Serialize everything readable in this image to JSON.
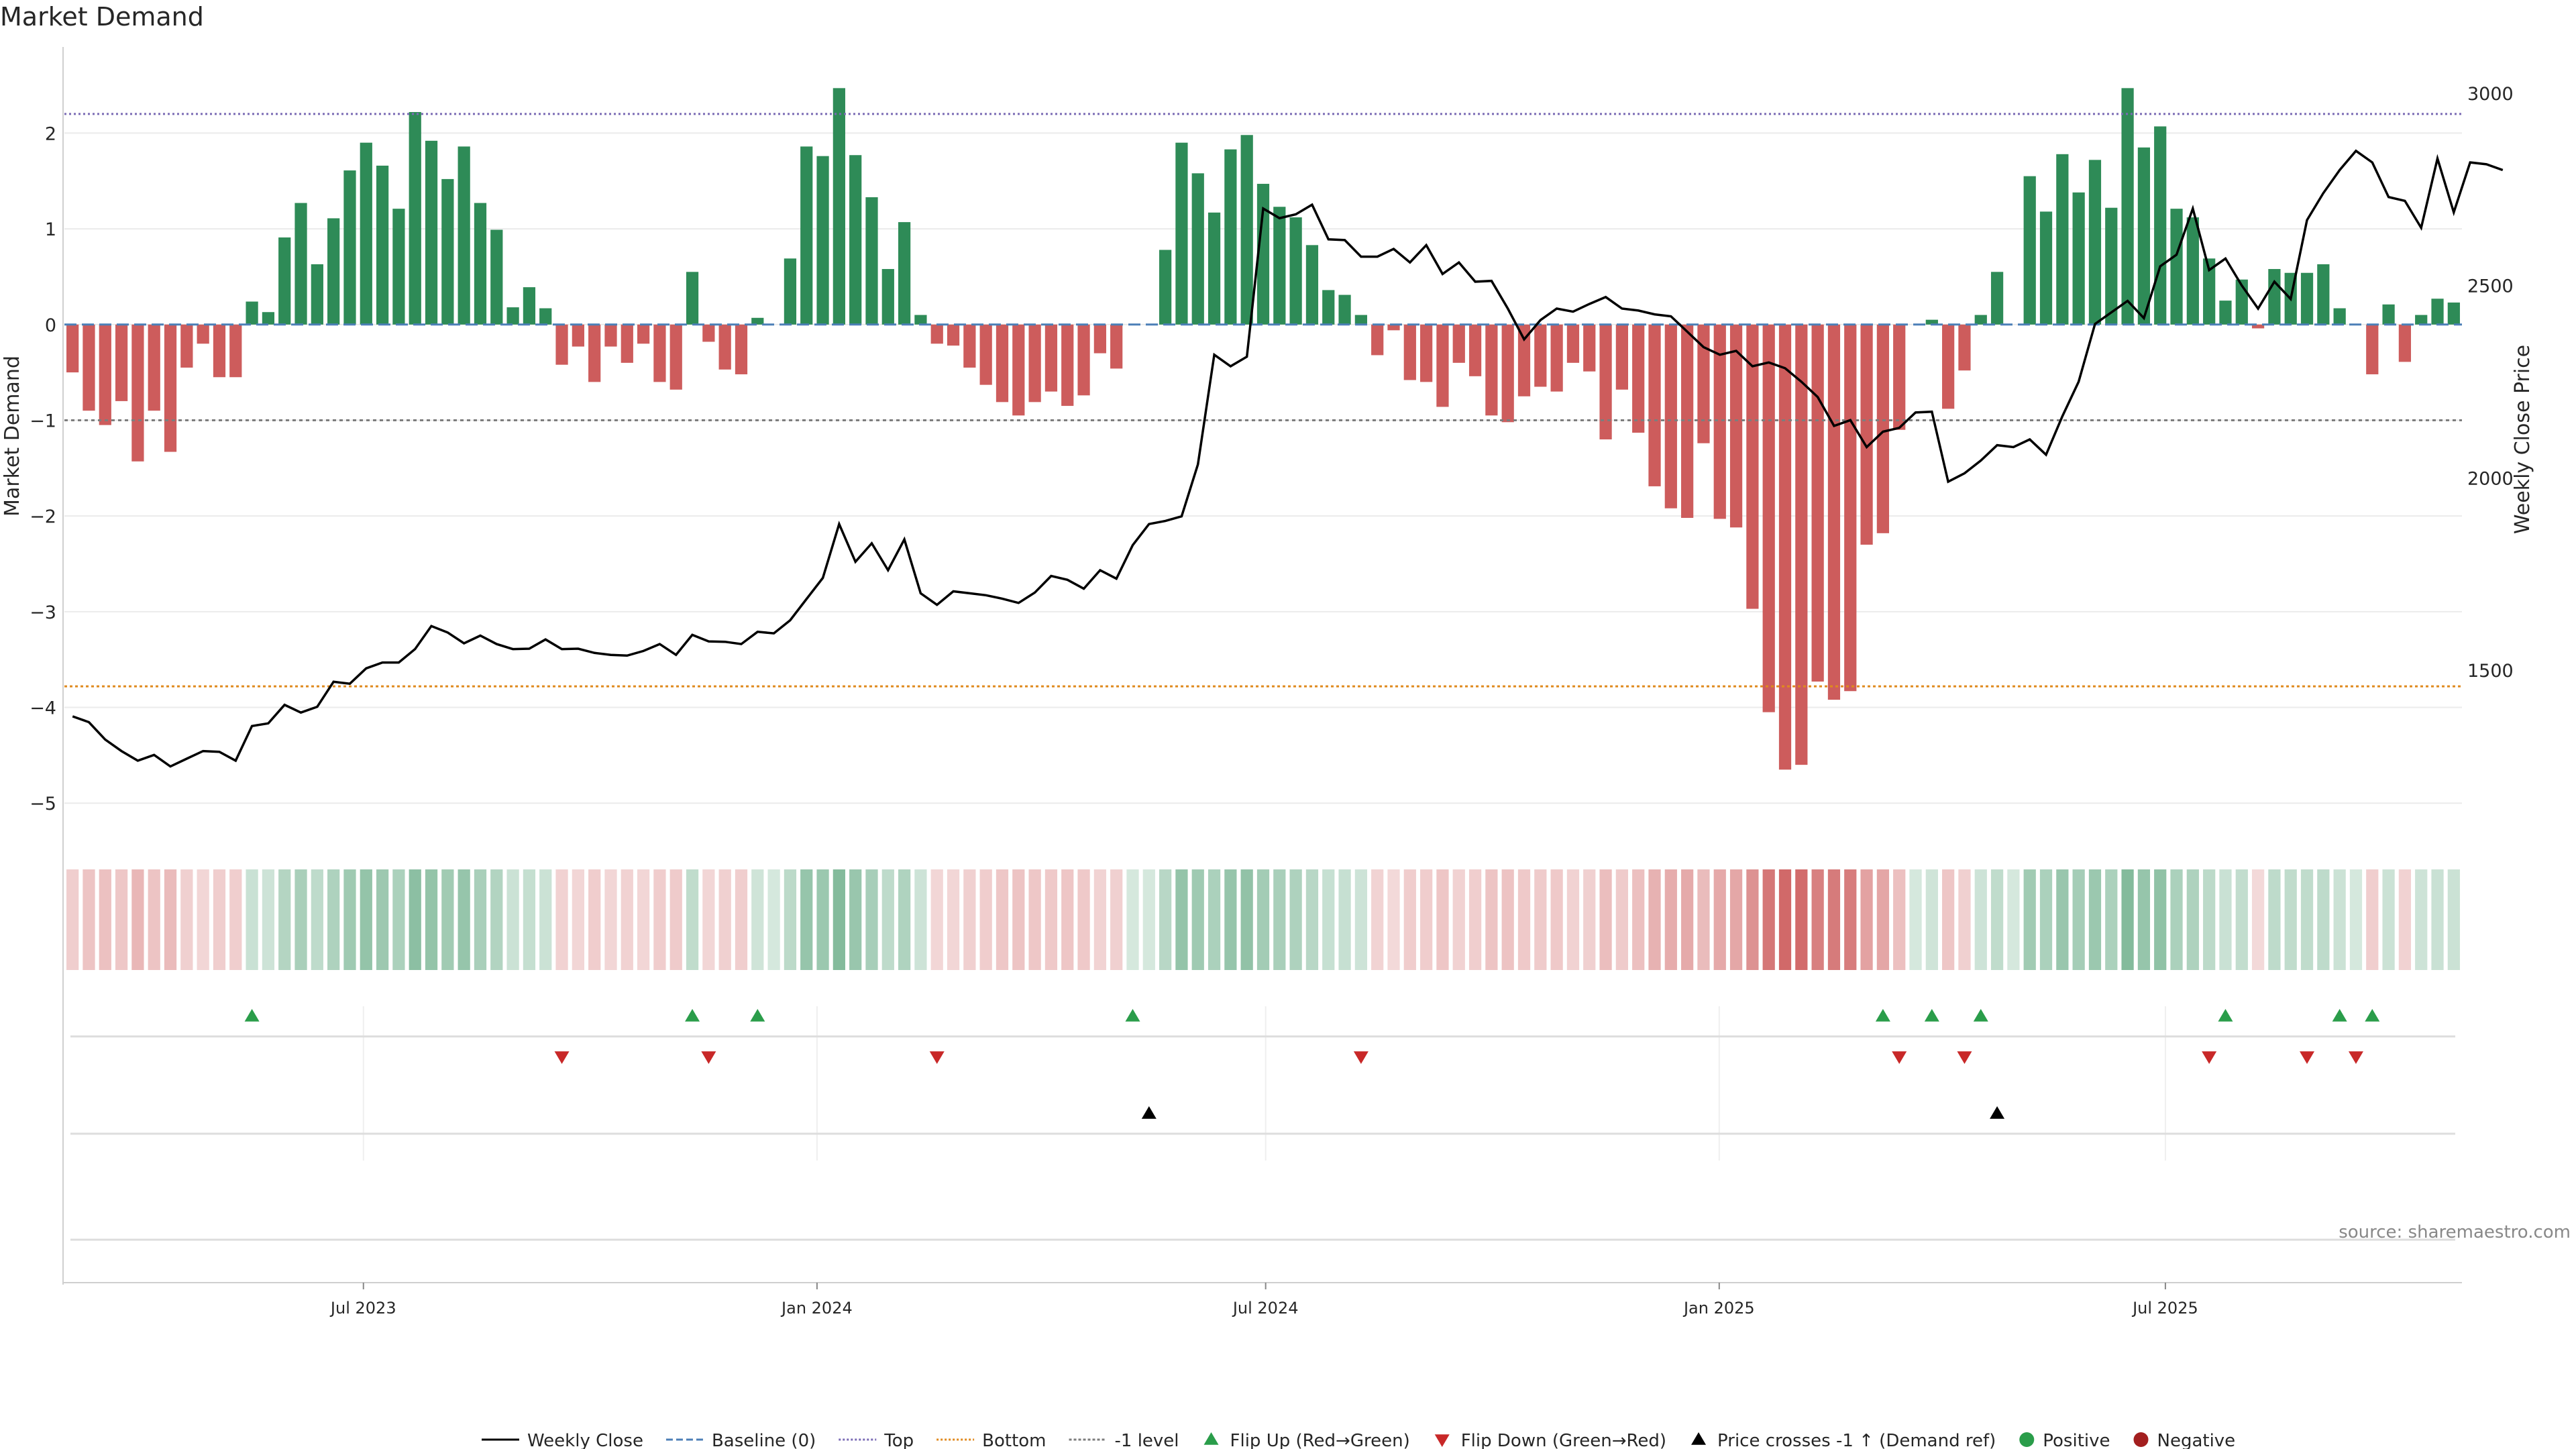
{
  "chart_data": {
    "type": "bar",
    "title": "Market Demand",
    "ylabel": "Market Demand",
    "y2label": "Weekly Close Price",
    "source": "source: sharemaestro.com",
    "ylim": [
      -5.3,
      2.9
    ],
    "y2lim": [
      1080,
      3120
    ],
    "yticks": [
      -5,
      -4,
      -3,
      -2,
      -1,
      0,
      1,
      2
    ],
    "y2ticks": [
      1500,
      2000,
      2500,
      3000
    ],
    "x_start": "2023-03-05",
    "x_end": "2025-10-26",
    "week_days": 7,
    "xticks": [
      {
        "date": "2023-07-01",
        "label": "Jul 2023"
      },
      {
        "date": "2024-01-01",
        "label": "Jan 2024"
      },
      {
        "date": "2024-07-01",
        "label": "Jul 2024"
      },
      {
        "date": "2025-01-01",
        "label": "Jan 2025"
      },
      {
        "date": "2025-07-01",
        "label": "Jul 2025"
      }
    ],
    "reference_lines": [
      {
        "name": "Top",
        "value": 2.2,
        "color": "#7a6bb5",
        "dash": "3,4"
      },
      {
        "name": "Baseline (0)",
        "value": 0,
        "color": "#4c7fb7",
        "dash": "18,8"
      },
      {
        "name": "-1 level",
        "value": -1,
        "color": "#7d7d7d",
        "dash": "5,5"
      },
      {
        "name": "Bottom",
        "value": -3.78,
        "color": "#e08a1e",
        "dash": "4,4"
      }
    ],
    "demand": [
      -0.5,
      -0.9,
      -1.05,
      -0.8,
      -1.43,
      -0.9,
      -1.33,
      -0.45,
      -0.2,
      -0.55,
      -0.55,
      0.24,
      0.13,
      0.91,
      1.27,
      0.63,
      1.11,
      1.61,
      1.9,
      1.66,
      1.21,
      2.22,
      1.92,
      1.52,
      1.86,
      1.27,
      0.99,
      0.18,
      0.39,
      0.17,
      -0.42,
      -0.23,
      -0.6,
      -0.23,
      -0.4,
      -0.2,
      -0.6,
      -0.68,
      0.55,
      -0.18,
      -0.47,
      -0.52,
      0.07,
      0,
      0.69,
      1.86,
      1.76,
      2.47,
      1.77,
      1.33,
      0.58,
      1.07,
      0.1,
      -0.2,
      -0.22,
      -0.45,
      -0.63,
      -0.81,
      -0.95,
      -0.81,
      -0.7,
      -0.85,
      -0.74,
      -0.3,
      -0.46,
      0,
      0,
      0.78,
      1.9,
      1.58,
      1.17,
      1.83,
      1.98,
      1.47,
      1.23,
      1.12,
      0.83,
      0.36,
      0.31,
      0.1,
      -0.32,
      -0.06,
      -0.58,
      -0.6,
      -0.86,
      -0.4,
      -0.54,
      -0.95,
      -1.02,
      -0.75,
      -0.65,
      -0.7,
      -0.4,
      -0.49,
      -1.2,
      -0.68,
      -1.13,
      -1.69,
      -1.92,
      -2.02,
      -1.24,
      -2.03,
      -2.12,
      -2.97,
      -4.05,
      -4.65,
      -4.6,
      -3.73,
      -3.92,
      -3.83,
      -2.3,
      -2.18,
      -1.1,
      0,
      0.05,
      -0.88,
      -0.48,
      0.1,
      0.55,
      0,
      1.55,
      1.18,
      1.78,
      1.38,
      1.72,
      1.22,
      2.47,
      1.85,
      2.07,
      1.21,
      1.12,
      0.69,
      0.25,
      0.47,
      -0.04,
      0.58,
      0.54,
      0.54,
      0.63,
      0.17,
      0,
      -0.52,
      0.21,
      -0.39,
      0.1,
      0.27,
      0.23
    ],
    "price": [
      1380,
      1365,
      1320,
      1290,
      1265,
      1280,
      1250,
      1270,
      1290,
      1288,
      1265,
      1355,
      1362,
      1410,
      1390,
      1405,
      1470,
      1465,
      1505,
      1520,
      1520,
      1555,
      1615,
      1598,
      1570,
      1590,
      1568,
      1555,
      1556,
      1580,
      1555,
      1556,
      1545,
      1540,
      1538,
      1550,
      1568,
      1540,
      1592,
      1575,
      1574,
      1568,
      1600,
      1596,
      1630,
      1685,
      1740,
      1880,
      1782,
      1830,
      1760,
      1840,
      1700,
      1670,
      1705,
      1700,
      1695,
      1686,
      1675,
      1702,
      1745,
      1735,
      1712,
      1760,
      1738,
      1825,
      1880,
      1888,
      1900,
      2035,
      2320,
      2290,
      2315,
      2700,
      2675,
      2685,
      2710,
      2620,
      2618,
      2575,
      2575,
      2595,
      2560,
      2605,
      2530,
      2560,
      2510,
      2512,
      2440,
      2360,
      2410,
      2440,
      2432,
      2452,
      2470,
      2440,
      2435,
      2425,
      2420,
      2380,
      2340,
      2320,
      2330,
      2290,
      2300,
      2285,
      2250,
      2210,
      2135,
      2150,
      2080,
      2120,
      2130,
      2170,
      2172,
      1990,
      2012,
      2045,
      2085,
      2080,
      2100,
      2060,
      2160,
      2250,
      2400,
      2430,
      2460,
      2415,
      2550,
      2580,
      2700,
      2540,
      2570,
      2500,
      2440,
      2510,
      2465,
      2670,
      2740,
      2800,
      2850,
      2820,
      2730,
      2720,
      2650,
      2830,
      2690,
      2820,
      2815,
      2800
    ]
  },
  "signal_rows": [
    {
      "name": "Flip Up",
      "marker": "up",
      "color": "#2a9d4a",
      "weeks": [
        11,
        38,
        42,
        65,
        111,
        114,
        117,
        132,
        139,
        141
      ]
    },
    {
      "name": "Flip Down",
      "marker": "down",
      "color": "#c82828",
      "weeks": [
        30,
        39,
        53,
        79,
        112,
        116,
        131,
        137,
        140
      ]
    },
    {
      "name": "Price crosses",
      "marker": "up",
      "color": "#000000",
      "weeks": [
        66,
        118
      ]
    },
    {
      "name": "Positive/Negative",
      "marker": "dot",
      "color": "#2a9d4a",
      "weeks": []
    }
  ],
  "legend": [
    {
      "label": "Weekly Close",
      "kind": "line",
      "color": "#000000",
      "dash": ""
    },
    {
      "label": "Baseline (0)",
      "kind": "line",
      "color": "#4c7fb7",
      "dash": "10,5"
    },
    {
      "label": "Top",
      "kind": "line",
      "color": "#7a6bb5",
      "dash": "3,3"
    },
    {
      "label": "Bottom",
      "kind": "line",
      "color": "#e08a1e",
      "dash": "3,3"
    },
    {
      "label": "-1 level",
      "kind": "line",
      "color": "#7d7d7d",
      "dash": "4,3"
    },
    {
      "label": "Flip Up (Red→Green)",
      "kind": "up",
      "color": "#2a9d4a"
    },
    {
      "label": "Flip Down (Green→Red)",
      "kind": "down",
      "color": "#c82828"
    },
    {
      "label": "Price crosses -1 ↑ (Demand ref)",
      "kind": "up",
      "color": "#000000"
    },
    {
      "label": "Positive",
      "kind": "dot",
      "color": "#2a9d4a"
    },
    {
      "label": "Negative",
      "kind": "dot",
      "color": "#a31f1f"
    }
  ],
  "colors": {
    "positive": "#2e8b57",
    "negative": "#cd5c5c",
    "price": "#000000",
    "grid": "#ebebeb",
    "axis": "#cfcfcf"
  }
}
